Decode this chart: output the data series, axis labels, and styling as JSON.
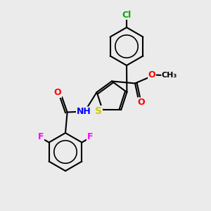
{
  "bg_color": "#ebebeb",
  "bond_color": "#000000",
  "bond_width": 1.5,
  "atom_colors": {
    "S": "#cccc00",
    "N": "#0000ff",
    "O": "#ff0000",
    "F": "#ff00ff",
    "Cl": "#00aa00",
    "C": "#000000"
  },
  "font_size": 9,
  "fig_size": [
    3.0,
    3.0
  ],
  "dpi": 100
}
